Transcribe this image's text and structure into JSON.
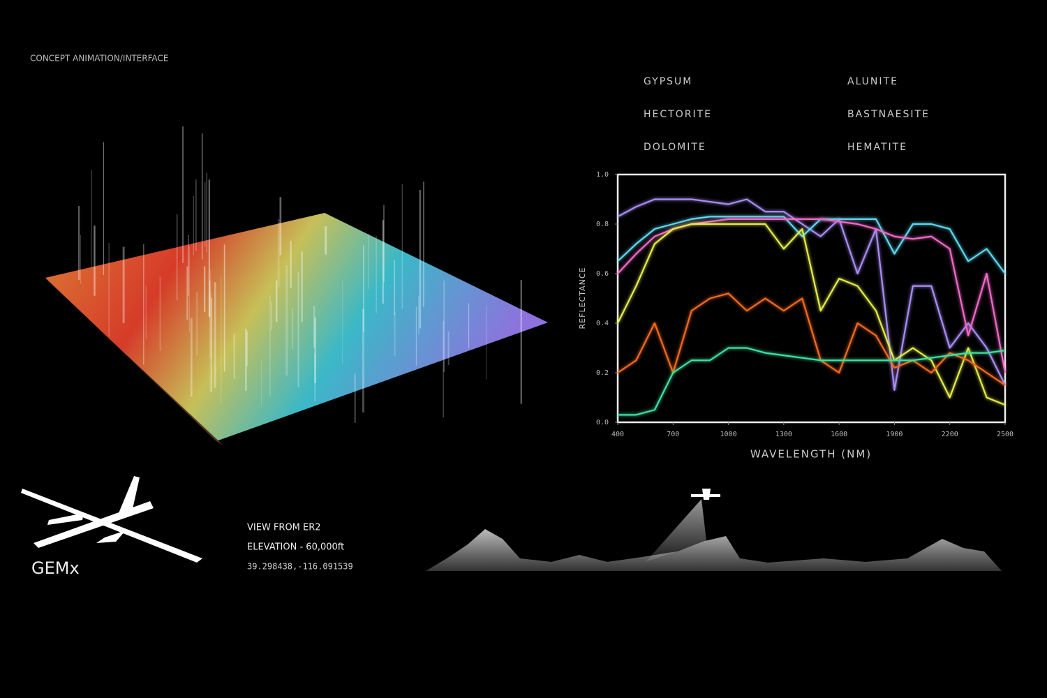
{
  "header": {
    "title": "CONCEPT ANIMATION/INTERFACE"
  },
  "brand": {
    "name": "GEMx"
  },
  "flight": {
    "view": "VIEW FROM ER2",
    "elevation": "ELEVATION  -  60,000ft",
    "coordinates": "39.298438,-116.091539"
  },
  "chart_data": {
    "type": "line",
    "x_label": "WAVELENGTH (NM)",
    "y_label": "REFLECTANCE",
    "x": [
      400,
      500,
      600,
      700,
      800,
      900,
      1000,
      1100,
      1200,
      1300,
      1400,
      1500,
      1600,
      1700,
      1800,
      1900,
      2000,
      2100,
      2200,
      2300,
      2400,
      2500
    ],
    "xlim": [
      400,
      2500
    ],
    "xticks": [
      400,
      700,
      1000,
      1300,
      1600,
      1900,
      2200,
      2500
    ],
    "ylim": [
      0,
      1
    ],
    "yticks": [
      {
        "value": 0,
        "label": "0.0"
      },
      0.2,
      0.4,
      0.6,
      0.8,
      {
        "value": 1,
        "label": "1.0"
      }
    ],
    "series": [
      {
        "name": "GYPSUM",
        "color": "#a98cf5",
        "values": [
          0.83,
          0.87,
          0.9,
          0.9,
          0.9,
          0.89,
          0.88,
          0.9,
          0.85,
          0.85,
          0.8,
          0.75,
          0.82,
          0.6,
          0.78,
          0.13,
          0.55,
          0.55,
          0.3,
          0.4,
          0.3,
          0.15
        ]
      },
      {
        "name": "HECTORITE",
        "color": "#5fd6f0",
        "values": [
          0.65,
          0.72,
          0.78,
          0.8,
          0.82,
          0.83,
          0.83,
          0.83,
          0.83,
          0.83,
          0.75,
          0.82,
          0.82,
          0.82,
          0.82,
          0.68,
          0.8,
          0.8,
          0.78,
          0.65,
          0.7,
          0.6
        ]
      },
      {
        "name": "DOLOMITE",
        "color": "#f06ac8",
        "values": [
          0.6,
          0.68,
          0.75,
          0.78,
          0.8,
          0.81,
          0.82,
          0.82,
          0.82,
          0.82,
          0.82,
          0.82,
          0.81,
          0.8,
          0.78,
          0.75,
          0.74,
          0.75,
          0.7,
          0.35,
          0.6,
          0.2
        ]
      },
      {
        "name": "ALUNITE",
        "color": "#e4ec4c",
        "values": [
          0.4,
          0.55,
          0.72,
          0.78,
          0.8,
          0.8,
          0.8,
          0.8,
          0.8,
          0.7,
          0.78,
          0.45,
          0.58,
          0.55,
          0.45,
          0.25,
          0.3,
          0.25,
          0.1,
          0.3,
          0.1,
          0.07
        ]
      },
      {
        "name": "BASTNAESITE",
        "color": "#f46a1c",
        "values": [
          0.2,
          0.25,
          0.4,
          0.2,
          0.45,
          0.5,
          0.52,
          0.45,
          0.5,
          0.45,
          0.5,
          0.25,
          0.2,
          0.4,
          0.35,
          0.22,
          0.25,
          0.2,
          0.28,
          0.25,
          0.2,
          0.15
        ]
      },
      {
        "name": "HEMATITE",
        "color": "#3ee0a0",
        "values": [
          0.03,
          0.03,
          0.05,
          0.2,
          0.25,
          0.25,
          0.3,
          0.3,
          0.28,
          0.27,
          0.26,
          0.25,
          0.25,
          0.25,
          0.25,
          0.25,
          0.25,
          0.26,
          0.27,
          0.28,
          0.28,
          0.29
        ]
      }
    ]
  }
}
